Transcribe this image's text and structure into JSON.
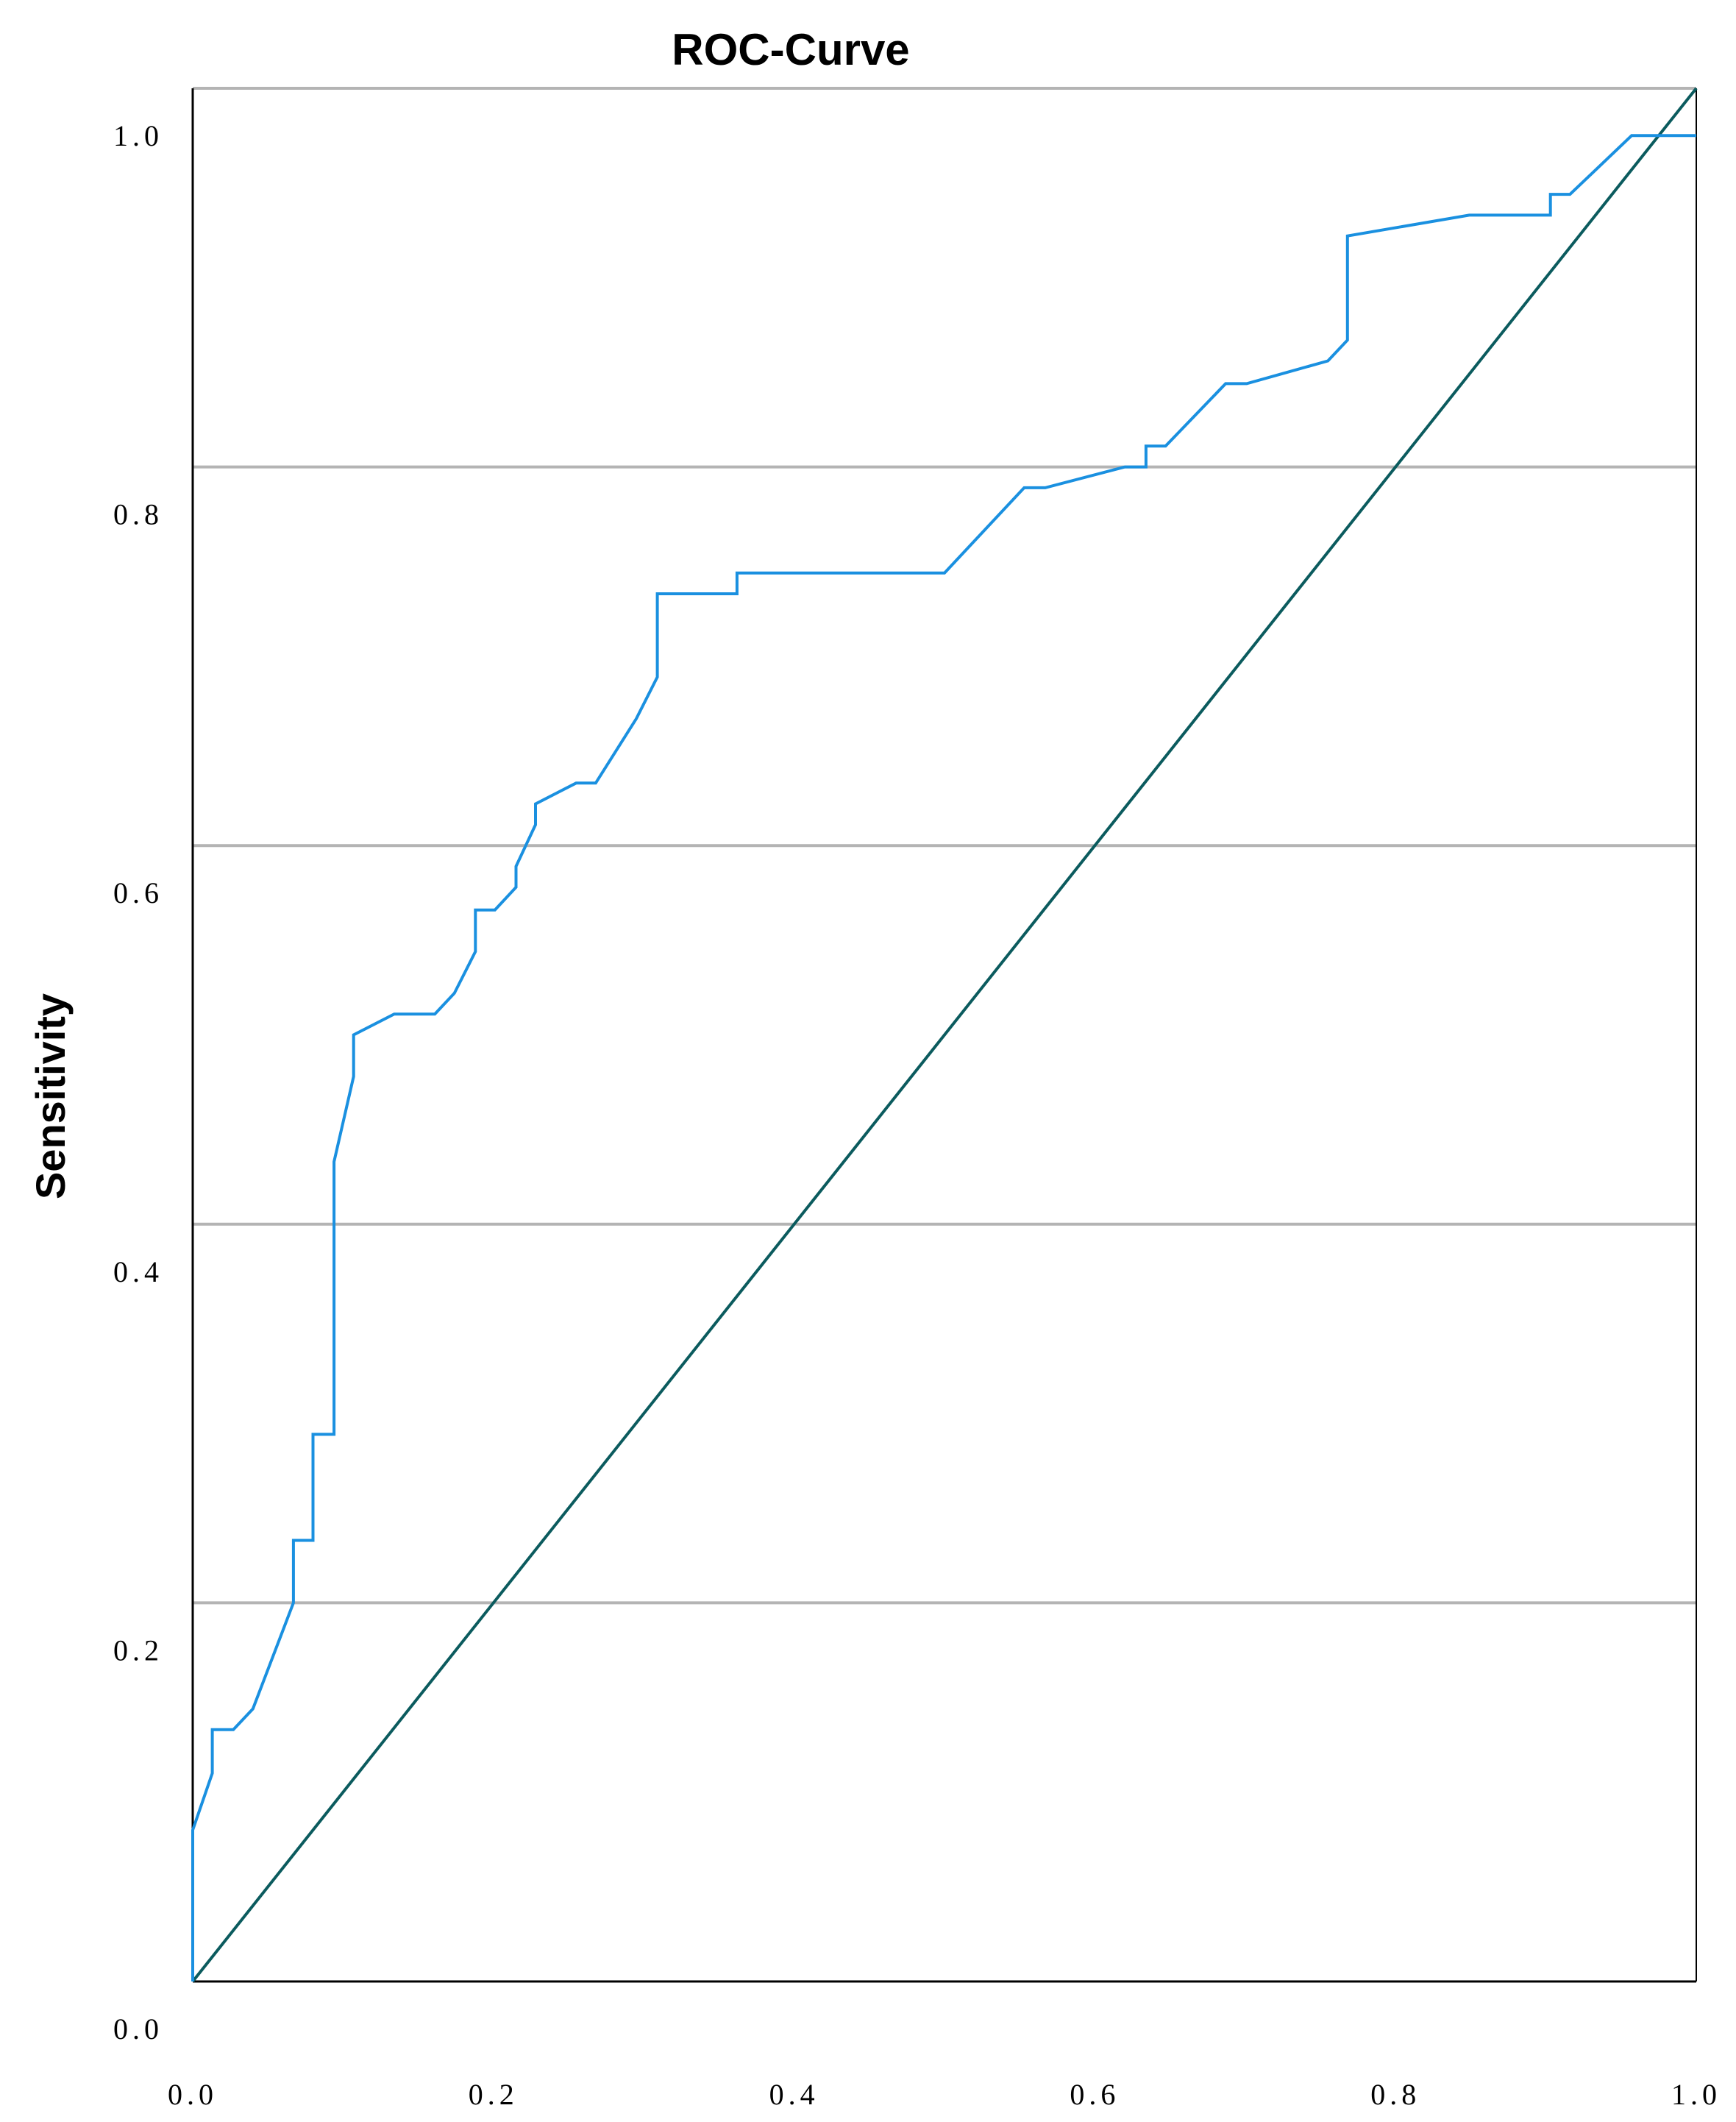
{
  "chart_data": {
    "type": "line",
    "title": "ROC-Curve",
    "xlabel": "",
    "ylabel": "Sensitivity",
    "xlim": [
      0,
      1
    ],
    "ylim": [
      0,
      1
    ],
    "x_tick_labels": [
      "0.0",
      "0.2",
      "0.4",
      "0.6",
      "0.8",
      "1.0"
    ],
    "y_tick_labels": [
      "0.0",
      "0.2",
      "0.4",
      "0.6",
      "0.8",
      "1.0"
    ],
    "grid": "horizontal",
    "legend": "none",
    "series": [
      {
        "color": "#1a90e0",
        "x": [
          0.0,
          0.0,
          0.013,
          0.013,
          0.027,
          0.04,
          0.067,
          0.067,
          0.08,
          0.08,
          0.094,
          0.094,
          0.107,
          0.107,
          0.134,
          0.161,
          0.174,
          0.188,
          0.188,
          0.201,
          0.215,
          0.215,
          0.228,
          0.228,
          0.255,
          0.268,
          0.295,
          0.309,
          0.309,
          0.362,
          0.362,
          0.5,
          0.553,
          0.567,
          0.62,
          0.634,
          0.634,
          0.647,
          0.687,
          0.701,
          0.755,
          0.768,
          0.768,
          0.849,
          0.903,
          0.903,
          0.916,
          0.957,
          1.0
        ],
        "y": [
          0.0,
          0.08,
          0.11,
          0.133,
          0.133,
          0.144,
          0.2,
          0.233,
          0.233,
          0.289,
          0.289,
          0.433,
          0.478,
          0.5,
          0.511,
          0.511,
          0.522,
          0.544,
          0.566,
          0.566,
          0.578,
          0.589,
          0.611,
          0.622,
          0.633,
          0.633,
          0.667,
          0.689,
          0.733,
          0.733,
          0.744,
          0.744,
          0.789,
          0.789,
          0.8,
          0.8,
          0.811,
          0.811,
          0.844,
          0.844,
          0.856,
          0.867,
          0.922,
          0.933,
          0.933,
          0.944,
          0.944,
          0.975,
          0.975
        ]
      },
      {
        "color": "#0b5b5e",
        "x": [
          0.0,
          1.0
        ],
        "y": [
          0.0,
          1.0
        ]
      }
    ]
  }
}
